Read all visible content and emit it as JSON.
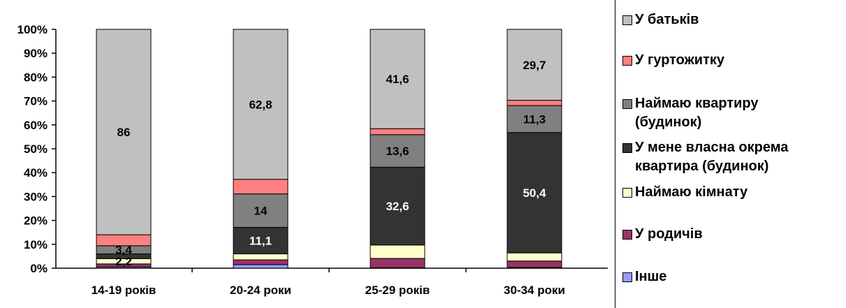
{
  "chart_data": {
    "type": "bar",
    "stacked": true,
    "normalized_percent": true,
    "categories": [
      "14-19 років",
      "20-24 роки",
      "25-29 років",
      "30-34 роки"
    ],
    "y_ticks": [
      "0%",
      "10%",
      "20%",
      "30%",
      "40%",
      "50%",
      "60%",
      "70%",
      "80%",
      "90%",
      "100%"
    ],
    "ylim": [
      0,
      100
    ],
    "legend_position": "right",
    "series": [
      {
        "name": "Інше",
        "color": "#9999ff",
        "values": [
          0.5,
          1.5,
          0.2,
          0.3
        ],
        "labels": [
          "",
          "",
          "",
          ""
        ]
      },
      {
        "name": "У родичів",
        "color": "#993366",
        "values": [
          1.3,
          2.0,
          3.9,
          2.7
        ],
        "labels": [
          "",
          "",
          "",
          ""
        ]
      },
      {
        "name": "Наймаю кімнату",
        "color": "#ffffcc",
        "values": [
          2.2,
          2.5,
          5.6,
          3.4
        ],
        "labels": [
          "2,2",
          "",
          "",
          ""
        ]
      },
      {
        "name": "У мене власна окрема квартира (будинок)",
        "color": "#333333",
        "values": [
          2.0,
          11.1,
          32.6,
          50.4
        ],
        "labels": [
          "",
          "11,1",
          "32,6",
          "50,4"
        ]
      },
      {
        "name": "Наймаю квартиру (будинок)",
        "color": "#808080",
        "values": [
          3.4,
          14.0,
          13.6,
          11.3
        ],
        "labels": [
          "3,4",
          "14",
          "13,6",
          "11,3"
        ]
      },
      {
        "name": "У гуртожитку",
        "color": "#ff8080",
        "values": [
          4.6,
          6.1,
          2.5,
          2.2
        ],
        "labels": [
          "",
          "",
          "",
          ""
        ]
      },
      {
        "name": "У батьків",
        "color": "#c0c0c0",
        "values": [
          86,
          62.8,
          41.6,
          29.7
        ],
        "labels": [
          "86",
          "62,8",
          "41,6",
          "29,7"
        ]
      }
    ],
    "legend_order": [
      "У батьків",
      "У гуртожитку",
      "Наймаю квартиру (будинок)",
      "У мене власна окрема квартира (будинок)",
      "Наймаю кімнату",
      "У родичів",
      "Інше"
    ],
    "legend_display": {
      "У батьків": "У батьків",
      "У гуртожитку": "У гуртожитку",
      "Наймаю квартиру (будинок)": "Наймаю квартиру\n(будинок)",
      "У мене власна окрема квартира (будинок)": "У мене власна окрема\nквартира (будинок)",
      "Наймаю кімнату": "Наймаю кімнату",
      "У родичів": "У родичів",
      "Інше": "Інше"
    }
  }
}
